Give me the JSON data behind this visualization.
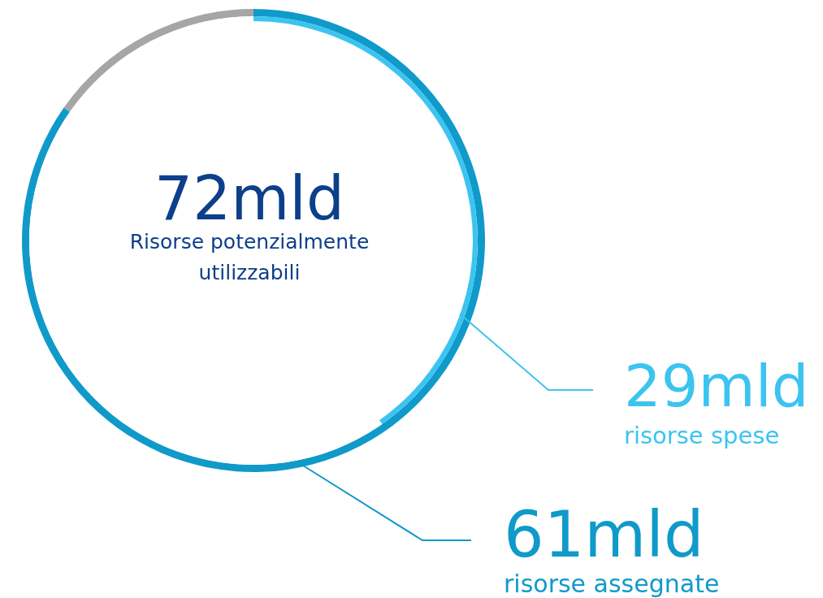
{
  "chart_data": [
    {
      "type": "donut",
      "title": "72mld",
      "subtitle": "Risorse potenzialmente utilizzabili",
      "categories": [
        "risorse assegnate",
        null
      ],
      "values": [
        61,
        11
      ],
      "colors": [
        "#0f9aca",
        "#a6a6a6"
      ],
      "value_labels": [
        "61mld",
        null
      ]
    },
    {
      "type": "donut",
      "categories": [
        "risorse spese",
        null
      ],
      "values": [
        29,
        43
      ],
      "colors": [
        "#3cc4f0",
        "#ffffff"
      ],
      "value_labels": [
        "29mld",
        null
      ]
    }
  ]
}
